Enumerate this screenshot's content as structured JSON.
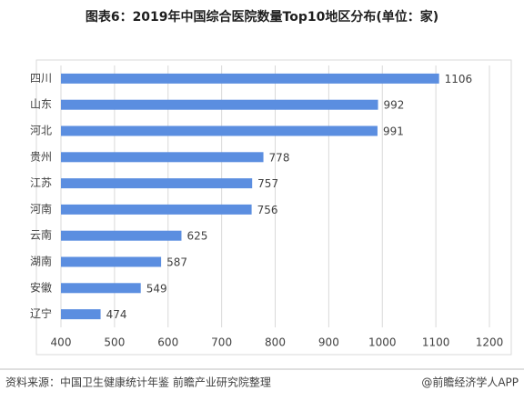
{
  "chart_data": {
    "type": "barh",
    "title": "图表6：2019年中国综合医院数量Top10地区分布(单位：家)",
    "categories": [
      "四川",
      "山东",
      "河北",
      "贵州",
      "江苏",
      "河南",
      "云南",
      "湖南",
      "安徽",
      "辽宁"
    ],
    "values": [
      1106,
      992,
      991,
      778,
      757,
      756,
      625,
      587,
      549,
      474
    ],
    "color": "#5b8ee0",
    "xlim": [
      400,
      1200
    ],
    "xticks": [
      400,
      500,
      600,
      700,
      800,
      900,
      1000,
      1100,
      1200
    ],
    "grid": true,
    "source": "资料来源：中国卫生健康统计年鉴 前瞻产业研究院整理",
    "credit": "@前瞻经济学人APP"
  }
}
